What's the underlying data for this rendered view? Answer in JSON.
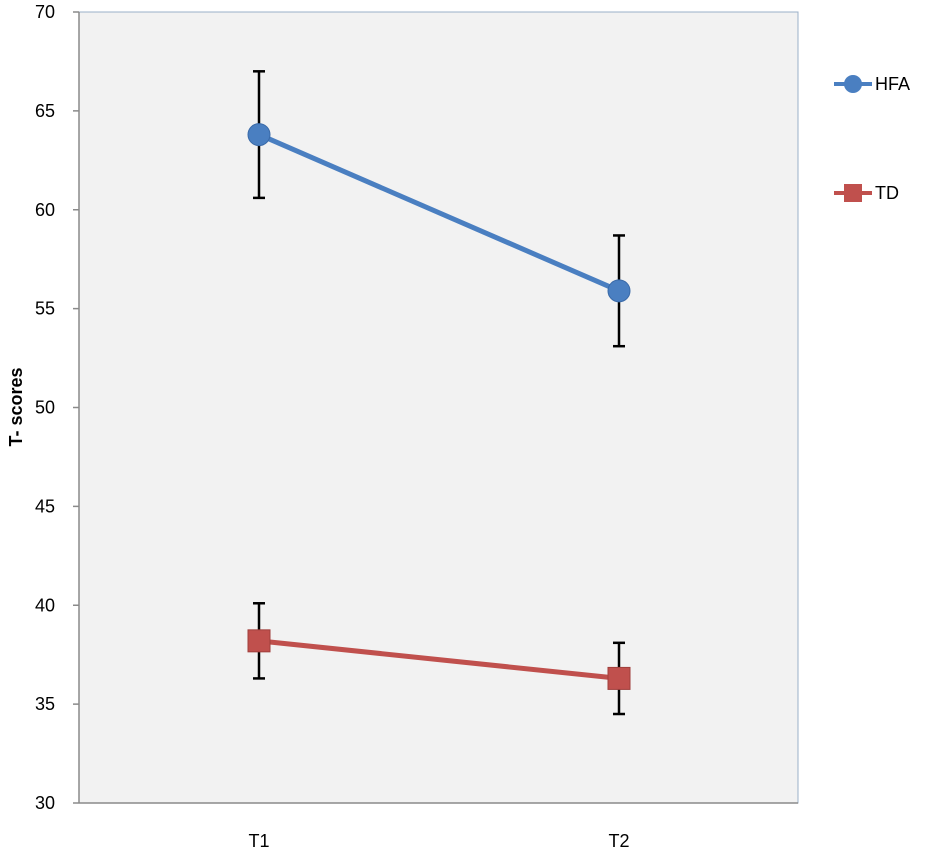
{
  "chart_data": {
    "type": "line",
    "categories": [
      "T1",
      "T2"
    ],
    "ylabel": "T-  scores",
    "xlabel": "",
    "ylim": [
      30,
      70
    ],
    "yticks": [
      30,
      35,
      40,
      45,
      50,
      55,
      60,
      65,
      70
    ],
    "grid": false,
    "legend_position": "right",
    "plot_background": "#f2f2f2",
    "plot_border": "#9bb0c8",
    "series": [
      {
        "name": "HFA",
        "values": [
          63.8,
          55.9
        ],
        "error_low": [
          60.6,
          53.1
        ],
        "error_high": [
          67.0,
          58.7
        ],
        "color": "#4a7fc1",
        "marker": "circle"
      },
      {
        "name": "TD",
        "values": [
          38.2,
          36.3
        ],
        "error_low": [
          36.3,
          34.5
        ],
        "error_high": [
          40.1,
          38.1
        ],
        "color": "#c0504d",
        "marker": "square"
      }
    ]
  }
}
